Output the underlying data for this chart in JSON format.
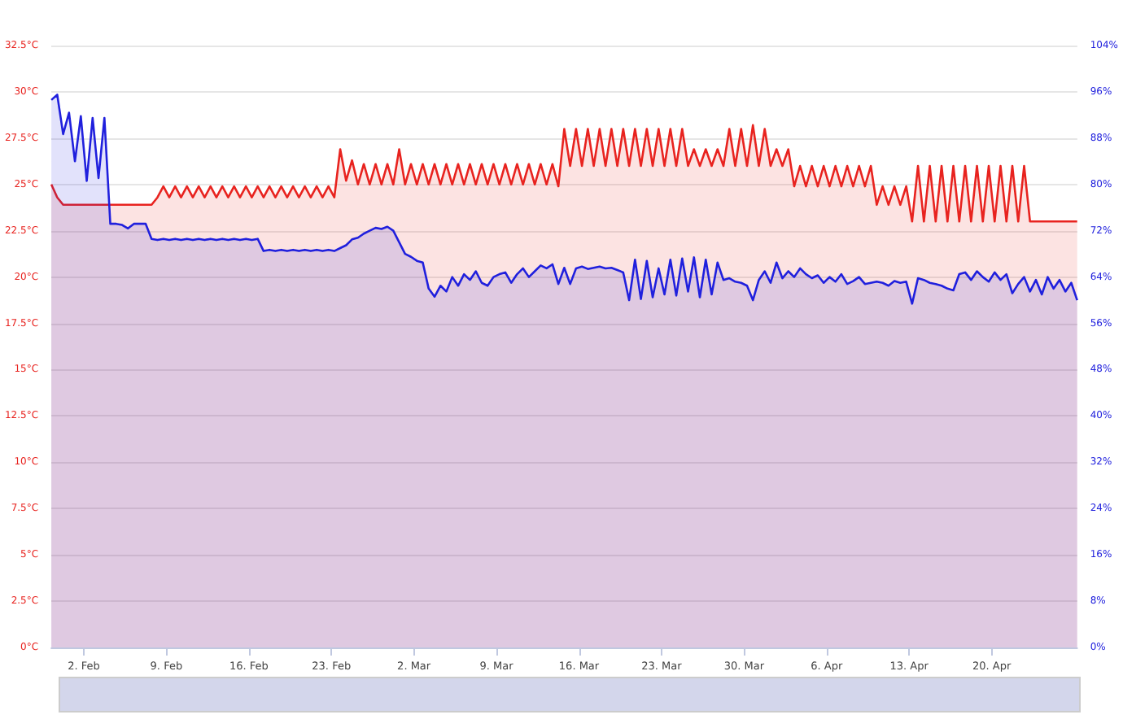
{
  "chart_data": {
    "type": "area",
    "x": [
      "--01-30T06:00",
      "--01-30T18:00",
      "--01-31T06:00",
      "--01-31T18:00",
      "--02-01T06:00",
      "--02-01T18:00",
      "--02-02T06:00",
      "--02-02T18:00",
      "--02-03T06:00",
      "--02-03T18:00",
      "--02-04T06:00",
      "--02-04T18:00",
      "--02-05T06:00",
      "--02-05T18:00",
      "--02-06T06:00",
      "--02-06T18:00",
      "--02-07T06:00",
      "--02-07T18:00",
      "--02-08T06:00",
      "--02-08T18:00",
      "--02-09T06:00",
      "--02-09T18:00",
      "--02-10T06:00",
      "--02-10T18:00",
      "--02-11T06:00",
      "--02-11T18:00",
      "--02-12T06:00",
      "--02-12T18:00",
      "--02-13T06:00",
      "--02-13T18:00",
      "--02-14T06:00",
      "--02-14T18:00",
      "--02-15T06:00",
      "--02-15T18:00",
      "--02-16T06:00",
      "--02-16T18:00",
      "--02-17T06:00",
      "--02-17T18:00",
      "--02-18T06:00",
      "--02-18T18:00",
      "--02-19T06:00",
      "--02-19T18:00",
      "--02-20T06:00",
      "--02-20T18:00",
      "--02-21T06:00",
      "--02-21T18:00",
      "--02-22T06:00",
      "--02-22T18:00",
      "--02-23T06:00",
      "--02-23T18:00",
      "--02-24T06:00",
      "--02-24T18:00",
      "--02-25T06:00",
      "--02-25T18:00",
      "--02-26T06:00",
      "--02-26T18:00",
      "--02-27T06:00",
      "--02-27T18:00",
      "--02-28T06:00",
      "--02-28T18:00",
      "--03-01T06:00",
      "--03-01T18:00",
      "--03-02T06:00",
      "--03-02T18:00",
      "--03-03T06:00",
      "--03-03T18:00",
      "--03-04T06:00",
      "--03-04T18:00",
      "--03-05T06:00",
      "--03-05T18:00",
      "--03-06T06:00",
      "--03-06T18:00",
      "--03-07T06:00",
      "--03-07T18:00",
      "--03-08T06:00",
      "--03-08T18:00",
      "--03-09T06:00",
      "--03-09T18:00",
      "--03-10T06:00",
      "--03-10T18:00",
      "--03-11T06:00",
      "--03-11T18:00",
      "--03-12T06:00",
      "--03-12T18:00",
      "--03-13T06:00",
      "--03-13T18:00",
      "--03-14T06:00",
      "--03-14T18:00",
      "--03-15T06:00",
      "--03-15T18:00",
      "--03-16T06:00",
      "--03-16T18:00",
      "--03-17T06:00",
      "--03-17T18:00",
      "--03-18T06:00",
      "--03-18T18:00",
      "--03-19T06:00",
      "--03-19T18:00",
      "--03-20T06:00",
      "--03-20T18:00",
      "--03-21T06:00",
      "--03-21T18:00",
      "--03-22T06:00",
      "--03-22T18:00",
      "--03-23T06:00",
      "--03-23T18:00",
      "--03-24T06:00",
      "--03-24T18:00",
      "--03-25T06:00",
      "--03-25T18:00",
      "--03-26T06:00",
      "--03-26T18:00",
      "--03-27T06:00",
      "--03-27T18:00",
      "--03-28T06:00",
      "--03-28T18:00",
      "--03-29T06:00",
      "--03-29T18:00",
      "--03-30T06:00",
      "--03-30T18:00",
      "--03-31T06:00",
      "--03-31T18:00",
      "--04-01T06:00",
      "--04-01T18:00",
      "--04-02T06:00",
      "--04-02T18:00",
      "--04-03T06:00",
      "--04-03T18:00",
      "--04-04T06:00",
      "--04-04T18:00",
      "--04-05T06:00",
      "--04-05T18:00",
      "--04-06T06:00",
      "--04-06T18:00",
      "--04-07T06:00",
      "--04-07T18:00",
      "--04-08T06:00",
      "--04-08T18:00",
      "--04-09T06:00",
      "--04-09T18:00",
      "--04-10T06:00",
      "--04-10T18:00",
      "--04-11T06:00",
      "--04-11T18:00",
      "--04-12T06:00",
      "--04-12T18:00",
      "--04-13T06:00",
      "--04-13T18:00",
      "--04-14T06:00",
      "--04-14T18:00",
      "--04-15T06:00",
      "--04-15T18:00",
      "--04-16T06:00",
      "--04-16T18:00",
      "--04-17T06:00",
      "--04-17T18:00",
      "--04-18T06:00",
      "--04-18T18:00",
      "--04-19T06:00",
      "--04-19T18:00",
      "--04-20T06:00",
      "--04-20T18:00",
      "--04-21T06:00",
      "--04-21T18:00",
      "--04-22T06:00",
      "--04-22T18:00",
      "--04-23T06:00",
      "--04-23T18:00",
      "--04-24T06:00",
      "--04-24T18:00",
      "--04-25T06:00",
      "--04-25T18:00",
      "--04-26T06:00",
      "--04-26T18:00",
      "--04-27T06:00"
    ],
    "series": [
      {
        "color": "#e8231f",
        "values": [
          25.0,
          24.3,
          23.9,
          23.9,
          23.9,
          23.9,
          23.9,
          23.9,
          23.9,
          23.9,
          23.9,
          23.9,
          23.9,
          23.9,
          23.9,
          23.9,
          23.9,
          23.9,
          24.3,
          24.9,
          24.3,
          24.9,
          24.3,
          24.9,
          24.3,
          24.9,
          24.3,
          24.9,
          24.3,
          24.9,
          24.3,
          24.9,
          24.3,
          24.9,
          24.3,
          24.9,
          24.3,
          24.9,
          24.3,
          24.9,
          24.3,
          24.9,
          24.3,
          24.9,
          24.3,
          24.9,
          24.3,
          24.9,
          24.3,
          26.9,
          25.2,
          26.3,
          25.0,
          26.1,
          25.0,
          26.1,
          25.0,
          26.1,
          25.0,
          26.9,
          25.0,
          26.1,
          25.0,
          26.1,
          25.0,
          26.1,
          25.0,
          26.1,
          25.0,
          26.1,
          25.0,
          26.1,
          25.0,
          26.1,
          25.0,
          26.1,
          25.0,
          26.1,
          25.0,
          26.1,
          25.0,
          26.1,
          25.0,
          26.1,
          25.0,
          26.1,
          24.9,
          28.0,
          26.0,
          28.0,
          26.0,
          28.0,
          26.0,
          28.0,
          26.0,
          28.0,
          26.0,
          28.0,
          26.0,
          28.0,
          26.0,
          28.0,
          26.0,
          28.0,
          26.0,
          28.0,
          26.0,
          28.0,
          26.0,
          26.9,
          26.0,
          26.9,
          26.0,
          26.9,
          26.0,
          28.0,
          26.0,
          28.0,
          26.0,
          28.2,
          26.0,
          28.0,
          26.0,
          26.9,
          26.0,
          26.9,
          24.9,
          26.0,
          24.9,
          26.0,
          24.9,
          26.0,
          24.9,
          26.0,
          24.9,
          26.0,
          24.9,
          26.0,
          24.9,
          26.0,
          23.9,
          24.9,
          23.9,
          24.9,
          23.9,
          24.9,
          23.0,
          26.0,
          23.0,
          26.0,
          23.0,
          26.0,
          23.0,
          26.0,
          23.0,
          26.0,
          23.0,
          26.0,
          23.0,
          26.0,
          23.0,
          26.0,
          23.0,
          26.0,
          23.0,
          26.0,
          23.0,
          23.0,
          23.0,
          23.0,
          23.0,
          23.0,
          23.0,
          23.0,
          23.0
        ]
      },
      {
        "color": "#2020dd",
        "axis": "y2",
        "values": [
          94.6,
          95.5,
          88.7,
          92.4,
          84.0,
          91.8,
          80.6,
          91.5,
          81.1,
          91.5,
          73.2,
          73.2,
          73.0,
          72.4,
          73.2,
          73.2,
          73.2,
          70.6,
          70.4,
          70.6,
          70.4,
          70.6,
          70.4,
          70.6,
          70.4,
          70.6,
          70.4,
          70.6,
          70.4,
          70.6,
          70.4,
          70.6,
          70.4,
          70.6,
          70.4,
          70.6,
          68.5,
          68.7,
          68.5,
          68.7,
          68.5,
          68.7,
          68.5,
          68.7,
          68.5,
          68.7,
          68.5,
          68.7,
          68.5,
          69.0,
          69.5,
          70.5,
          70.8,
          71.5,
          72.0,
          72.5,
          72.3,
          72.7,
          72.0,
          70.0,
          68.0,
          67.5,
          66.8,
          66.5,
          62.0,
          60.6,
          62.5,
          61.5,
          64.0,
          62.5,
          64.5,
          63.5,
          65.0,
          63.0,
          62.5,
          64.0,
          64.5,
          64.8,
          63.0,
          64.5,
          65.5,
          64.0,
          65.0,
          66.0,
          65.5,
          66.2,
          62.8,
          65.6,
          62.8,
          65.5,
          65.8,
          65.4,
          65.6,
          65.8,
          65.5,
          65.6,
          65.2,
          64.8,
          60.0,
          67.0,
          60.2,
          66.8,
          60.5,
          65.5,
          61.0,
          67.0,
          60.8,
          67.2,
          61.5,
          67.4,
          60.5,
          67.0,
          61.0,
          66.5,
          63.5,
          63.8,
          63.2,
          63.0,
          62.5,
          60.0,
          63.5,
          65.0,
          63.0,
          66.5,
          63.8,
          65.0,
          64.0,
          65.5,
          64.5,
          63.8,
          64.3,
          63.0,
          64.0,
          63.2,
          64.5,
          62.8,
          63.3,
          64.0,
          62.8,
          63.0,
          63.2,
          63.0,
          62.5,
          63.3,
          63.0,
          63.2,
          59.4,
          63.8,
          63.5,
          63.0,
          62.8,
          62.5,
          62.0,
          61.7,
          64.5,
          64.8,
          63.5,
          65.0,
          64.0,
          63.2,
          64.8,
          63.5,
          64.5,
          61.2,
          62.8,
          64.0,
          61.5,
          63.5,
          61.0,
          64.0,
          62.0,
          63.5,
          61.5,
          63.0,
          60.0
        ]
      }
    ],
    "xlim": [
      "--01-30T06:00",
      "--04-27T06:00"
    ],
    "xticks": [
      {
        "value": "--02-02",
        "label": "2. Feb"
      },
      {
        "value": "--02-09",
        "label": "9. Feb"
      },
      {
        "value": "--02-16",
        "label": "16. Feb"
      },
      {
        "value": "--02-23",
        "label": "23. Feb"
      },
      {
        "value": "--03-02",
        "label": "2. Mar"
      },
      {
        "value": "--03-09",
        "label": "9. Mar"
      },
      {
        "value": "--03-16",
        "label": "16. Mar"
      },
      {
        "value": "--03-23",
        "label": "23. Mar"
      },
      {
        "value": "--03-30",
        "label": "30. Mar"
      },
      {
        "value": "--04-06",
        "label": "6. Apr"
      },
      {
        "value": "--04-13",
        "label": "13. Apr"
      },
      {
        "value": "--04-20",
        "label": "20. Apr"
      }
    ],
    "ylim": [
      0,
      32.5
    ],
    "yticks": [
      {
        "value": 0,
        "label": "0°C"
      },
      {
        "value": 2.5,
        "label": "2.5°C"
      },
      {
        "value": 5,
        "label": "5°C"
      },
      {
        "value": 7.5,
        "label": "7.5°C"
      },
      {
        "value": 10,
        "label": "10°C"
      },
      {
        "value": 12.5,
        "label": "12.5°C"
      },
      {
        "value": 15,
        "label": "15°C"
      },
      {
        "value": 17.5,
        "label": "17.5°C"
      },
      {
        "value": 20,
        "label": "20°C"
      },
      {
        "value": 22.5,
        "label": "22.5°C"
      },
      {
        "value": 25,
        "label": "25°C"
      },
      {
        "value": 27.5,
        "label": "27.5°C"
      },
      {
        "value": 30,
        "label": "30°C"
      },
      {
        "value": 32.5,
        "label": "32.5°C"
      }
    ],
    "y2lim": [
      0,
      104
    ],
    "y2ticks": [
      {
        "value": 0,
        "label": "0%"
      },
      {
        "value": 8,
        "label": "8%"
      },
      {
        "value": 16,
        "label": "16%"
      },
      {
        "value": 24,
        "label": "24%"
      },
      {
        "value": 32,
        "label": "32%"
      },
      {
        "value": 40,
        "label": "40%"
      },
      {
        "value": 48,
        "label": "48%"
      },
      {
        "value": 56,
        "label": "56%"
      },
      {
        "value": 64,
        "label": "64%"
      },
      {
        "value": 72,
        "label": "72%"
      },
      {
        "value": 80,
        "label": "80%"
      },
      {
        "value": 88,
        "label": "88%"
      },
      {
        "value": 96,
        "label": "96%"
      },
      {
        "value": 104,
        "label": "104%"
      }
    ],
    "grid": "y"
  }
}
